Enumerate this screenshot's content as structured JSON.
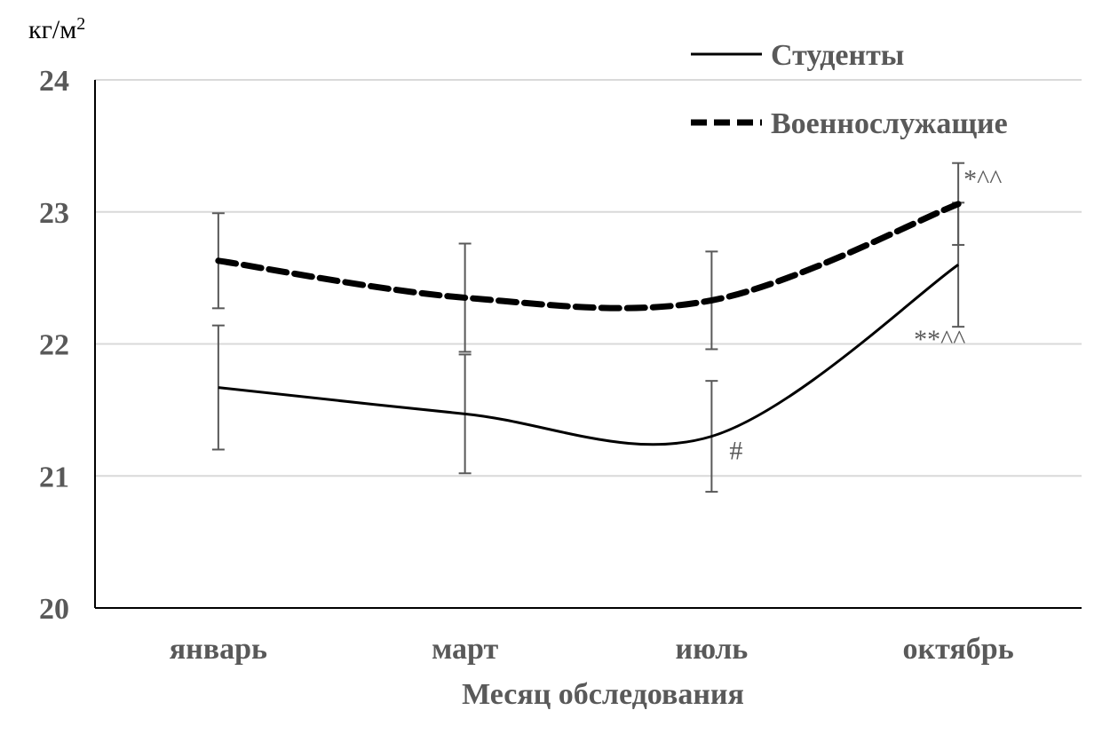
{
  "chart_data": {
    "type": "line",
    "unit_label": "кг/м",
    "unit_superscript": "2",
    "xlabel": "Месяц обследования",
    "ylabel": "",
    "categories": [
      "январь",
      "март",
      "июль",
      "октябрь"
    ],
    "ylim": [
      20,
      24
    ],
    "yticks": [
      "20",
      "21",
      "22",
      "23",
      "24"
    ],
    "grid": true,
    "legend_position": "top-right",
    "series": [
      {
        "name": "Студенты",
        "style": "solid",
        "color": "#000000",
        "values": [
          21.67,
          21.47,
          21.3,
          22.6
        ],
        "error": [
          0.47,
          0.45,
          0.42,
          0.47
        ],
        "annotations": [
          "",
          "",
          "#",
          "**^^"
        ]
      },
      {
        "name": "Военнослужащие",
        "style": "dashed",
        "color": "#000000",
        "values": [
          22.63,
          22.35,
          22.33,
          23.06
        ],
        "error": [
          0.36,
          0.41,
          0.37,
          0.31
        ],
        "annotations": [
          "",
          "",
          "",
          "*^^"
        ]
      }
    ],
    "errorbar_color": "#595959",
    "grid_color": "#d9d9d9"
  }
}
